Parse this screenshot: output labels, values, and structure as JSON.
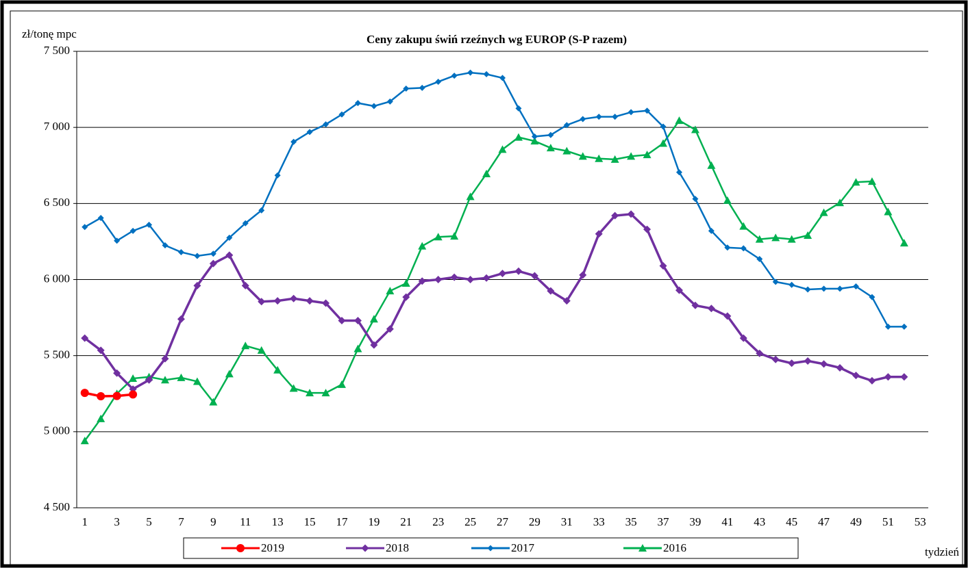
{
  "chart_data": {
    "type": "line",
    "title": "Ceny zakupu świń rzeźnych  wg EUROP (S-P razem)",
    "y_label": "zł/tonę  mpc",
    "x_label": "tydzień",
    "categories": [
      1,
      null,
      3,
      null,
      5,
      null,
      7,
      null,
      9,
      null,
      11,
      null,
      13,
      null,
      15,
      null,
      17,
      null,
      19,
      null,
      21,
      null,
      23,
      null,
      25,
      null,
      27,
      null,
      29,
      null,
      31,
      null,
      33,
      null,
      35,
      null,
      37,
      null,
      39,
      null,
      41,
      null,
      43,
      null,
      45,
      null,
      47,
      null,
      49,
      null,
      51,
      null,
      53
    ],
    "ylim": [
      4500,
      7500
    ],
    "yticks": [
      {
        "value": 4500,
        "label": "4 500"
      },
      {
        "value": 5000,
        "label": "5 000"
      },
      {
        "value": 5500,
        "label": "5 500"
      },
      {
        "value": 6000,
        "label": "6 000"
      },
      {
        "value": 6500,
        "label": "6 500"
      },
      {
        "value": 7000,
        "label": "7 000"
      },
      {
        "value": 7500,
        "label": "7 500"
      }
    ],
    "grid": true,
    "legend": "bottom",
    "series": [
      {
        "name": "2019",
        "color": "#ff0000",
        "marker": "circle",
        "values": [
          5255,
          5233,
          5235,
          5245,
          null,
          null,
          null,
          null,
          null,
          null,
          null,
          null,
          null,
          null,
          null,
          null,
          null,
          null,
          null,
          null,
          null,
          null,
          null,
          null,
          null,
          null,
          null,
          null,
          null,
          null,
          null,
          null,
          null,
          null,
          null,
          null,
          null,
          null,
          null,
          null,
          null,
          null,
          null,
          null,
          null,
          null,
          null,
          null,
          null,
          null,
          null,
          null,
          null
        ]
      },
      {
        "name": "2018",
        "color": "#7030a0",
        "marker": "diamond",
        "values": [
          5615,
          5535,
          5385,
          5280,
          5340,
          5480,
          5740,
          5960,
          6105,
          6160,
          5960,
          5855,
          5860,
          5875,
          5860,
          5845,
          5730,
          5730,
          5570,
          5675,
          5885,
          5990,
          6000,
          6015,
          6000,
          6010,
          6040,
          6055,
          6025,
          5925,
          5860,
          6030,
          6300,
          6420,
          6430,
          6330,
          6090,
          5930,
          5830,
          5810,
          5760,
          5615,
          5515,
          5475,
          5450,
          5465,
          5445,
          5420,
          5370,
          5335,
          5360,
          5360,
          null
        ]
      },
      {
        "name": "2017",
        "color": "#0070c0",
        "marker": "small-diamond",
        "values": [
          6345,
          6405,
          6255,
          6320,
          6360,
          6225,
          6180,
          6155,
          6170,
          6275,
          6370,
          6455,
          6685,
          6905,
          6970,
          7020,
          7085,
          7160,
          7140,
          7170,
          7255,
          7260,
          7300,
          7340,
          7360,
          7350,
          7325,
          7125,
          6940,
          6950,
          7015,
          7055,
          7070,
          7070,
          7100,
          7110,
          7005,
          6705,
          6530,
          6320,
          6210,
          6205,
          6135,
          5985,
          5965,
          5935,
          5940,
          5940,
          5955,
          5885,
          5690,
          5690,
          null
        ]
      },
      {
        "name": "2016",
        "color": "#00b050",
        "marker": "triangle",
        "values": [
          4940,
          5085,
          5250,
          5350,
          5360,
          5340,
          5355,
          5330,
          5195,
          5380,
          5565,
          5535,
          5405,
          5285,
          5255,
          5255,
          5310,
          5545,
          5740,
          5925,
          5975,
          6220,
          6280,
          6285,
          6545,
          6695,
          6855,
          6935,
          6910,
          6865,
          6845,
          6810,
          6795,
          6790,
          6810,
          6820,
          6895,
          7045,
          6985,
          6750,
          6520,
          6350,
          6265,
          6275,
          6265,
          6290,
          6440,
          6505,
          6640,
          6645,
          6445,
          6240,
          null
        ]
      }
    ]
  }
}
